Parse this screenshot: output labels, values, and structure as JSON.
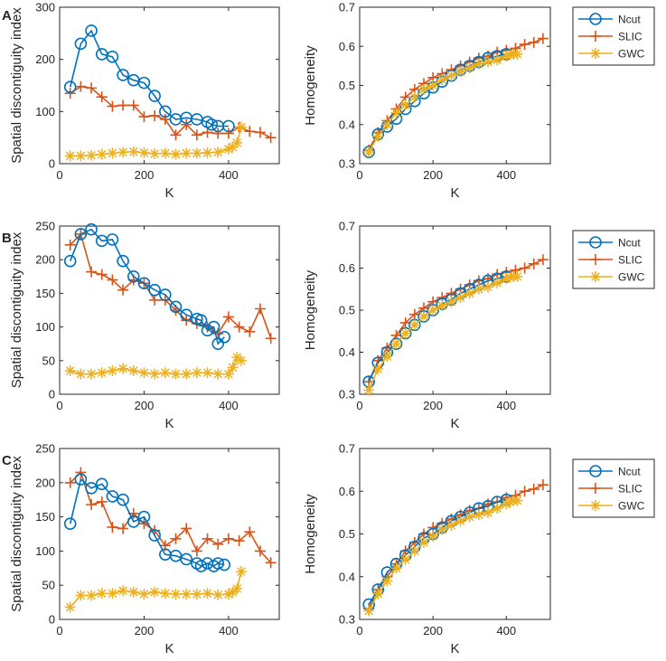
{
  "figure": {
    "panel_labels": [
      "A",
      "B",
      "C"
    ]
  },
  "colors": {
    "Ncut": "#0072BD",
    "SLIC": "#D95319",
    "GWC": "#EDB120",
    "axis": "#262626"
  },
  "chart_data": [
    {
      "type": "line",
      "panel": "A",
      "xlabel": "K",
      "ylabel": "Spatial discontiguity index",
      "xlim": [
        0,
        520
      ],
      "ylim": [
        0,
        300
      ],
      "xticks": [
        0,
        200,
        400
      ],
      "xtick_labels": [
        "0",
        "200",
        "400"
      ],
      "yticks": [
        0,
        100,
        200,
        300
      ],
      "ytick_labels": [
        "0",
        "100",
        "200",
        "300"
      ],
      "legend": [
        "Ncut",
        "SLIC",
        "GWC"
      ],
      "series": [
        {
          "name": "Ncut",
          "marker": "circle",
          "x": [
            25,
            50,
            75,
            100,
            125,
            150,
            175,
            200,
            225,
            250,
            275,
            300,
            325,
            350,
            360,
            375,
            400
          ],
          "y": [
            147,
            230,
            255,
            210,
            205,
            170,
            160,
            155,
            130,
            100,
            85,
            88,
            85,
            80,
            75,
            72,
            72
          ]
        },
        {
          "name": "SLIC",
          "marker": "plus",
          "x": [
            25,
            50,
            75,
            100,
            125,
            150,
            175,
            200,
            225,
            250,
            275,
            300,
            325,
            350,
            375,
            400,
            425,
            450,
            475,
            500
          ],
          "y": [
            135,
            148,
            145,
            128,
            110,
            112,
            112,
            90,
            92,
            85,
            55,
            75,
            55,
            60,
            58,
            58,
            70,
            62,
            60,
            50
          ]
        },
        {
          "name": "GWC",
          "marker": "asterisk",
          "x": [
            25,
            50,
            75,
            100,
            125,
            150,
            175,
            200,
            225,
            250,
            275,
            300,
            325,
            350,
            375,
            400,
            410,
            420,
            430
          ],
          "y": [
            15,
            15,
            16,
            18,
            20,
            22,
            23,
            21,
            19,
            20,
            18,
            20,
            20,
            21,
            22,
            28,
            32,
            40,
            70
          ]
        }
      ]
    },
    {
      "type": "line",
      "panel": "A",
      "xlabel": "K",
      "ylabel": "Homogeneity",
      "xlim": [
        0,
        520
      ],
      "ylim": [
        0.3,
        0.7
      ],
      "xticks": [
        0,
        200,
        400
      ],
      "xtick_labels": [
        "0",
        "200",
        "400"
      ],
      "yticks": [
        0.3,
        0.4,
        0.5,
        0.6,
        0.7
      ],
      "ytick_labels": [
        "0.3",
        "0.4",
        "0.5",
        "0.6",
        "0.7"
      ],
      "legend": [
        "Ncut",
        "SLIC",
        "GWC"
      ],
      "series": [
        {
          "name": "Ncut",
          "marker": "circle",
          "x": [
            25,
            50,
            75,
            100,
            125,
            150,
            175,
            200,
            225,
            250,
            275,
            300,
            325,
            350,
            375,
            400
          ],
          "y": [
            0.33,
            0.375,
            0.395,
            0.415,
            0.44,
            0.46,
            0.48,
            0.495,
            0.51,
            0.525,
            0.54,
            0.55,
            0.56,
            0.57,
            0.575,
            0.58
          ]
        },
        {
          "name": "SLIC",
          "marker": "plus",
          "x": [
            25,
            50,
            75,
            100,
            125,
            150,
            175,
            200,
            225,
            250,
            275,
            300,
            325,
            350,
            375,
            400,
            425,
            450,
            475,
            500
          ],
          "y": [
            0.335,
            0.38,
            0.41,
            0.44,
            0.47,
            0.49,
            0.505,
            0.52,
            0.53,
            0.54,
            0.55,
            0.56,
            0.57,
            0.575,
            0.585,
            0.59,
            0.595,
            0.605,
            0.61,
            0.62
          ]
        },
        {
          "name": "GWC",
          "marker": "asterisk",
          "x": [
            25,
            50,
            75,
            100,
            125,
            150,
            175,
            200,
            225,
            250,
            275,
            300,
            325,
            350,
            375,
            400,
            410,
            420,
            430
          ],
          "y": [
            0.33,
            0.37,
            0.4,
            0.43,
            0.45,
            0.47,
            0.49,
            0.5,
            0.515,
            0.525,
            0.535,
            0.545,
            0.555,
            0.56,
            0.565,
            0.575,
            0.578,
            0.58,
            0.58
          ]
        }
      ]
    },
    {
      "type": "line",
      "panel": "B",
      "xlabel": "K",
      "ylabel": "Spatial discontiguity index",
      "xlim": [
        0,
        520
      ],
      "ylim": [
        0,
        250
      ],
      "xticks": [
        0,
        200,
        400
      ],
      "xtick_labels": [
        "0",
        "200",
        "400"
      ],
      "yticks": [
        0,
        50,
        100,
        150,
        200,
        250
      ],
      "ytick_labels": [
        "0",
        "50",
        "100",
        "150",
        "200",
        "250"
      ],
      "legend": [
        "Ncut",
        "SLIC",
        "GWC"
      ],
      "series": [
        {
          "name": "Ncut",
          "marker": "circle",
          "x": [
            25,
            50,
            75,
            100,
            125,
            150,
            175,
            200,
            225,
            250,
            275,
            300,
            325,
            335,
            350,
            365,
            375,
            390
          ],
          "y": [
            198,
            238,
            245,
            228,
            230,
            198,
            175,
            165,
            155,
            148,
            130,
            118,
            112,
            110,
            95,
            100,
            75,
            85
          ]
        },
        {
          "name": "SLIC",
          "marker": "plus",
          "x": [
            25,
            50,
            75,
            100,
            125,
            150,
            175,
            200,
            225,
            250,
            275,
            300,
            325,
            350,
            375,
            400,
            425,
            450,
            475,
            500
          ],
          "y": [
            222,
            238,
            182,
            178,
            170,
            155,
            170,
            165,
            140,
            140,
            125,
            110,
            105,
            100,
            90,
            115,
            100,
            93,
            127,
            83
          ]
        },
        {
          "name": "GWC",
          "marker": "asterisk",
          "x": [
            25,
            50,
            75,
            100,
            125,
            150,
            175,
            200,
            225,
            250,
            275,
            300,
            325,
            350,
            375,
            400,
            410,
            420,
            430
          ],
          "y": [
            35,
            30,
            30,
            32,
            35,
            38,
            35,
            32,
            30,
            32,
            30,
            30,
            32,
            32,
            30,
            30,
            40,
            55,
            50
          ]
        }
      ]
    },
    {
      "type": "line",
      "panel": "B",
      "xlabel": "K",
      "ylabel": "Homogeneity",
      "xlim": [
        0,
        520
      ],
      "ylim": [
        0.3,
        0.7
      ],
      "xticks": [
        0,
        200,
        400
      ],
      "xtick_labels": [
        "0",
        "200",
        "400"
      ],
      "yticks": [
        0.3,
        0.4,
        0.5,
        0.6,
        0.7
      ],
      "ytick_labels": [
        "0.3",
        "0.4",
        "0.5",
        "0.6",
        "0.7"
      ],
      "legend": [
        "Ncut",
        "SLIC",
        "GWC"
      ],
      "series": [
        {
          "name": "Ncut",
          "marker": "circle",
          "x": [
            25,
            50,
            75,
            100,
            125,
            150,
            175,
            200,
            225,
            250,
            275,
            300,
            325,
            350,
            375,
            400
          ],
          "y": [
            0.33,
            0.375,
            0.4,
            0.42,
            0.445,
            0.465,
            0.485,
            0.5,
            0.515,
            0.525,
            0.54,
            0.55,
            0.56,
            0.57,
            0.575,
            0.58
          ]
        },
        {
          "name": "SLIC",
          "marker": "plus",
          "x": [
            25,
            50,
            75,
            100,
            125,
            150,
            175,
            200,
            225,
            250,
            275,
            300,
            325,
            350,
            375,
            400,
            425,
            450,
            475,
            500
          ],
          "y": [
            0.33,
            0.38,
            0.41,
            0.44,
            0.47,
            0.49,
            0.505,
            0.52,
            0.53,
            0.54,
            0.55,
            0.56,
            0.57,
            0.575,
            0.585,
            0.59,
            0.595,
            0.6,
            0.61,
            0.62
          ]
        },
        {
          "name": "GWC",
          "marker": "asterisk",
          "x": [
            25,
            50,
            75,
            100,
            125,
            150,
            175,
            200,
            225,
            250,
            275,
            300,
            325,
            350,
            375,
            400,
            410,
            420,
            430
          ],
          "y": [
            0.31,
            0.36,
            0.39,
            0.42,
            0.445,
            0.465,
            0.485,
            0.5,
            0.51,
            0.52,
            0.53,
            0.54,
            0.55,
            0.555,
            0.565,
            0.575,
            0.578,
            0.58,
            0.58
          ]
        }
      ]
    },
    {
      "type": "line",
      "panel": "C",
      "xlabel": "K",
      "ylabel": "Spatial discontiguity index",
      "xlim": [
        0,
        520
      ],
      "ylim": [
        0,
        250
      ],
      "xticks": [
        0,
        200,
        400
      ],
      "xtick_labels": [
        "0",
        "200",
        "400"
      ],
      "yticks": [
        0,
        50,
        100,
        150,
        200,
        250
      ],
      "ytick_labels": [
        "0",
        "50",
        "100",
        "150",
        "200",
        "250"
      ],
      "legend": [
        "Ncut",
        "SLIC",
        "GWC"
      ],
      "series": [
        {
          "name": "Ncut",
          "marker": "circle",
          "x": [
            25,
            50,
            75,
            100,
            125,
            150,
            175,
            200,
            225,
            250,
            275,
            300,
            325,
            335,
            350,
            365,
            375,
            390
          ],
          "y": [
            140,
            205,
            192,
            198,
            180,
            175,
            143,
            150,
            123,
            95,
            93,
            88,
            82,
            78,
            82,
            78,
            82,
            80
          ]
        },
        {
          "name": "SLIC",
          "marker": "plus",
          "x": [
            25,
            50,
            75,
            100,
            125,
            150,
            175,
            200,
            225,
            250,
            275,
            300,
            325,
            350,
            375,
            400,
            425,
            450,
            475,
            500
          ],
          "y": [
            200,
            215,
            168,
            172,
            135,
            133,
            155,
            140,
            130,
            108,
            118,
            133,
            100,
            118,
            110,
            118,
            115,
            128,
            100,
            83
          ]
        },
        {
          "name": "GWC",
          "marker": "asterisk",
          "x": [
            25,
            50,
            75,
            100,
            125,
            150,
            175,
            200,
            225,
            250,
            275,
            300,
            325,
            350,
            375,
            400,
            410,
            420,
            430
          ],
          "y": [
            18,
            35,
            35,
            38,
            38,
            42,
            40,
            37,
            40,
            38,
            37,
            37,
            37,
            38,
            36,
            37,
            40,
            45,
            70
          ]
        }
      ]
    },
    {
      "type": "line",
      "panel": "C",
      "xlabel": "K",
      "ylabel": "Homogeneity",
      "xlim": [
        0,
        520
      ],
      "ylim": [
        0.3,
        0.7
      ],
      "xticks": [
        0,
        200,
        400
      ],
      "xtick_labels": [
        "0",
        "200",
        "400"
      ],
      "yticks": [
        0.3,
        0.4,
        0.5,
        0.6,
        0.7
      ],
      "ytick_labels": [
        "0.3",
        "0.4",
        "0.5",
        "0.6",
        "0.7"
      ],
      "legend": [
        "Ncut",
        "SLIC",
        "GWC"
      ],
      "series": [
        {
          "name": "Ncut",
          "marker": "circle",
          "x": [
            25,
            50,
            75,
            100,
            125,
            150,
            175,
            200,
            225,
            250,
            275,
            300,
            325,
            350,
            375,
            400
          ],
          "y": [
            0.335,
            0.37,
            0.41,
            0.43,
            0.45,
            0.47,
            0.49,
            0.5,
            0.515,
            0.53,
            0.54,
            0.55,
            0.56,
            0.565,
            0.575,
            0.58
          ]
        },
        {
          "name": "SLIC",
          "marker": "plus",
          "x": [
            25,
            50,
            75,
            100,
            125,
            150,
            175,
            200,
            225,
            250,
            275,
            300,
            325,
            350,
            375,
            400,
            425,
            450,
            475,
            500
          ],
          "y": [
            0.325,
            0.37,
            0.4,
            0.43,
            0.46,
            0.48,
            0.5,
            0.515,
            0.525,
            0.535,
            0.545,
            0.555,
            0.56,
            0.57,
            0.575,
            0.585,
            0.59,
            0.6,
            0.605,
            0.615
          ]
        },
        {
          "name": "GWC",
          "marker": "asterisk",
          "x": [
            25,
            50,
            75,
            100,
            125,
            150,
            175,
            200,
            225,
            250,
            275,
            300,
            325,
            350,
            375,
            400,
            410,
            420,
            430
          ],
          "y": [
            0.32,
            0.36,
            0.39,
            0.42,
            0.44,
            0.46,
            0.48,
            0.495,
            0.51,
            0.52,
            0.53,
            0.54,
            0.545,
            0.55,
            0.56,
            0.57,
            0.575,
            0.578,
            0.578
          ]
        }
      ]
    }
  ]
}
